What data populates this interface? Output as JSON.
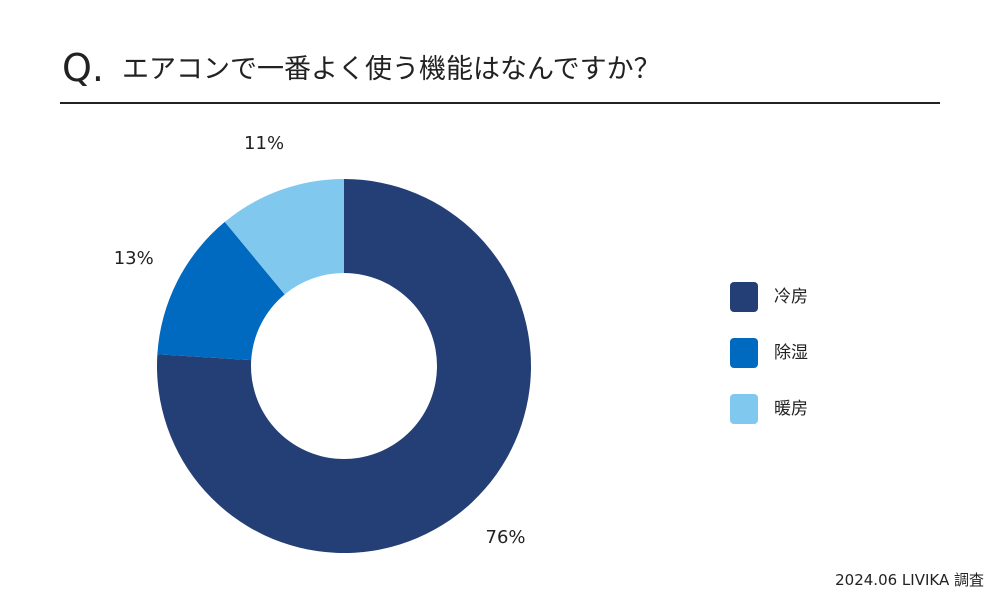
{
  "header": {
    "q_mark": "Q.",
    "question": "エアコンで一番よく使う機能はなんですか？"
  },
  "chart_data": {
    "type": "pie",
    "variant": "donut",
    "categories": [
      "冷房",
      "除湿",
      "暖房"
    ],
    "values": [
      76,
      13,
      11
    ],
    "value_labels": [
      "76%",
      "13%",
      "11%"
    ],
    "colors": [
      "#243f75",
      "#0069c0",
      "#80c8ee"
    ],
    "legend_position": "right"
  },
  "legend": {
    "items": [
      {
        "label": "冷房",
        "color": "#243f75"
      },
      {
        "label": "除湿",
        "color": "#0069c0"
      },
      {
        "label": "暖房",
        "color": "#80c8ee"
      }
    ]
  },
  "footer": {
    "source": "2024.06 LIVIKA 調査"
  }
}
